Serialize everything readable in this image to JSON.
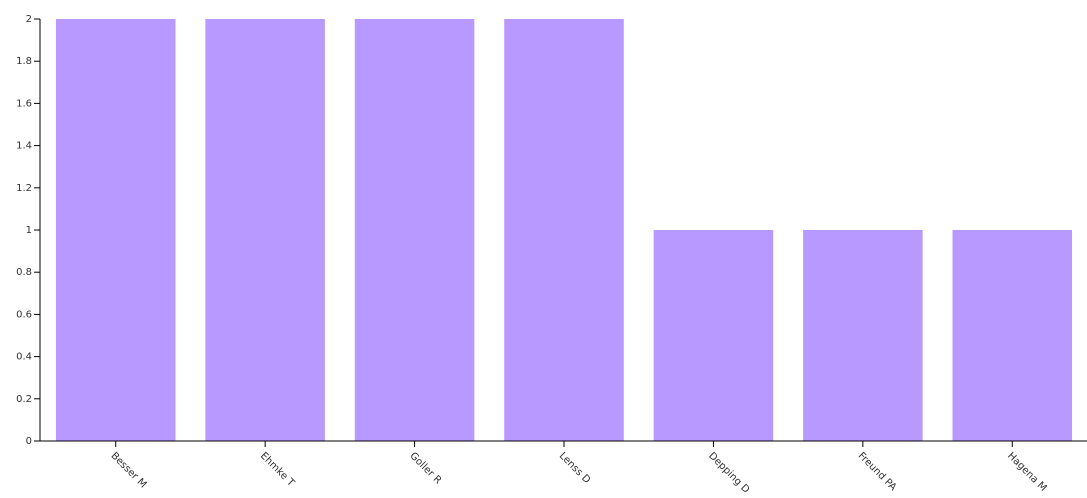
{
  "chart_data": {
    "type": "bar",
    "categories": [
      "Besser M",
      "Ehmke T",
      "Goller R",
      "Lenss D",
      "Depping D",
      "Freund PA",
      "Hagena M"
    ],
    "values": [
      2,
      2,
      2,
      2,
      1,
      1,
      1
    ],
    "y_ticks": [
      "0",
      "0.2",
      "0.4",
      "0.6",
      "0.8",
      "1",
      "1.2",
      "1.4",
      "1.6",
      "1.8",
      "2"
    ],
    "ylim": [
      0,
      2
    ],
    "grid": false,
    "bar_color": "#b799ff",
    "axis_color": "#000000",
    "x_label_rotation": "45deg"
  }
}
